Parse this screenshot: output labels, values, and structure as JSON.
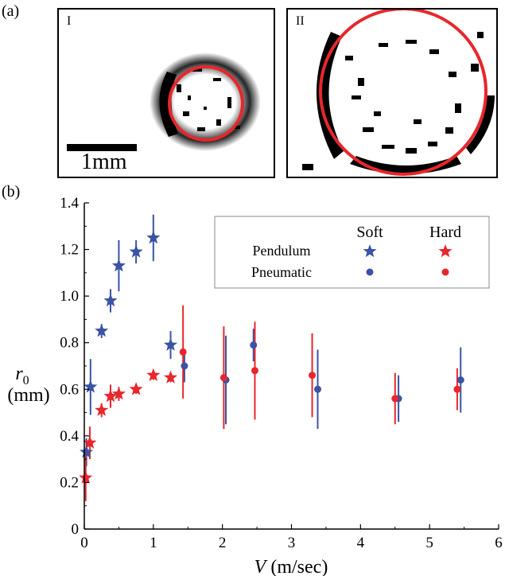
{
  "panel_a": {
    "label": "(a)",
    "image_I": {
      "tag": "I",
      "scale_label": "1mm"
    },
    "image_II": {
      "tag": "II"
    }
  },
  "panel_b": {
    "label": "(b)"
  },
  "colors": {
    "soft": "#3b53a4",
    "hard": "#e8262b",
    "circle": "#e8262b"
  },
  "chart_data": {
    "type": "scatter",
    "xlabel": "V (m/sec)",
    "ylabel_symbol": "r0",
    "ylabel_unit": "(mm)",
    "xlim": [
      0,
      6
    ],
    "ylim": [
      0,
      1.4
    ],
    "xticks": [
      "0",
      "1",
      "2",
      "3",
      "4",
      "5",
      "6"
    ],
    "yticks": [
      "0",
      "0.2",
      "0.4",
      "0.6",
      "0.8",
      "1.0",
      "1.2",
      "1.4"
    ],
    "legend": {
      "columns": [
        "Soft",
        "Hard"
      ],
      "rows": [
        "Pendulum",
        "Pneumatic"
      ],
      "placement": "top-right"
    },
    "series": [
      {
        "material": "Soft",
        "method": "Pendulum",
        "marker": "star",
        "points": [
          {
            "x": 0.03,
            "y": 0.33,
            "err": 0.06
          },
          {
            "x": 0.09,
            "y": 0.61,
            "err": 0.12
          },
          {
            "x": 0.25,
            "y": 0.85,
            "err": 0.03
          },
          {
            "x": 0.38,
            "y": 0.98,
            "err": 0.05
          },
          {
            "x": 0.5,
            "y": 1.13,
            "err": 0.11
          },
          {
            "x": 0.75,
            "y": 1.19,
            "err": 0.05
          },
          {
            "x": 1.0,
            "y": 1.25,
            "err": 0.1
          },
          {
            "x": 1.25,
            "y": 0.79,
            "err": 0.06
          }
        ]
      },
      {
        "material": "Hard",
        "method": "Pendulum",
        "marker": "star",
        "points": [
          {
            "x": 0.02,
            "y": 0.22,
            "err": 0.1
          },
          {
            "x": 0.08,
            "y": 0.37,
            "err": 0.07
          },
          {
            "x": 0.25,
            "y": 0.51,
            "err": 0.03
          },
          {
            "x": 0.38,
            "y": 0.57,
            "err": 0.05
          },
          {
            "x": 0.5,
            "y": 0.58,
            "err": 0.03
          },
          {
            "x": 0.75,
            "y": 0.6,
            "err": 0.02
          },
          {
            "x": 1.0,
            "y": 0.66,
            "err": 0.02
          },
          {
            "x": 1.25,
            "y": 0.65,
            "err": 0.02
          }
        ]
      },
      {
        "material": "Soft",
        "method": "Pneumatic",
        "marker": "circle",
        "points": [
          {
            "x": 1.45,
            "y": 0.7,
            "err": 0.07
          },
          {
            "x": 2.05,
            "y": 0.64,
            "err": 0.19
          },
          {
            "x": 2.45,
            "y": 0.79,
            "err": 0.07
          },
          {
            "x": 3.38,
            "y": 0.6,
            "err": 0.17
          },
          {
            "x": 4.55,
            "y": 0.56,
            "err": 0.1
          },
          {
            "x": 5.45,
            "y": 0.64,
            "err": 0.14
          }
        ]
      },
      {
        "material": "Hard",
        "method": "Pneumatic",
        "marker": "circle",
        "points": [
          {
            "x": 1.43,
            "y": 0.76,
            "err": 0.2
          },
          {
            "x": 2.02,
            "y": 0.65,
            "err": 0.22
          },
          {
            "x": 2.47,
            "y": 0.68,
            "err": 0.21
          },
          {
            "x": 3.3,
            "y": 0.66,
            "err": 0.18
          },
          {
            "x": 4.5,
            "y": 0.56,
            "err": 0.11
          },
          {
            "x": 5.4,
            "y": 0.6,
            "err": 0.09
          }
        ]
      }
    ]
  }
}
